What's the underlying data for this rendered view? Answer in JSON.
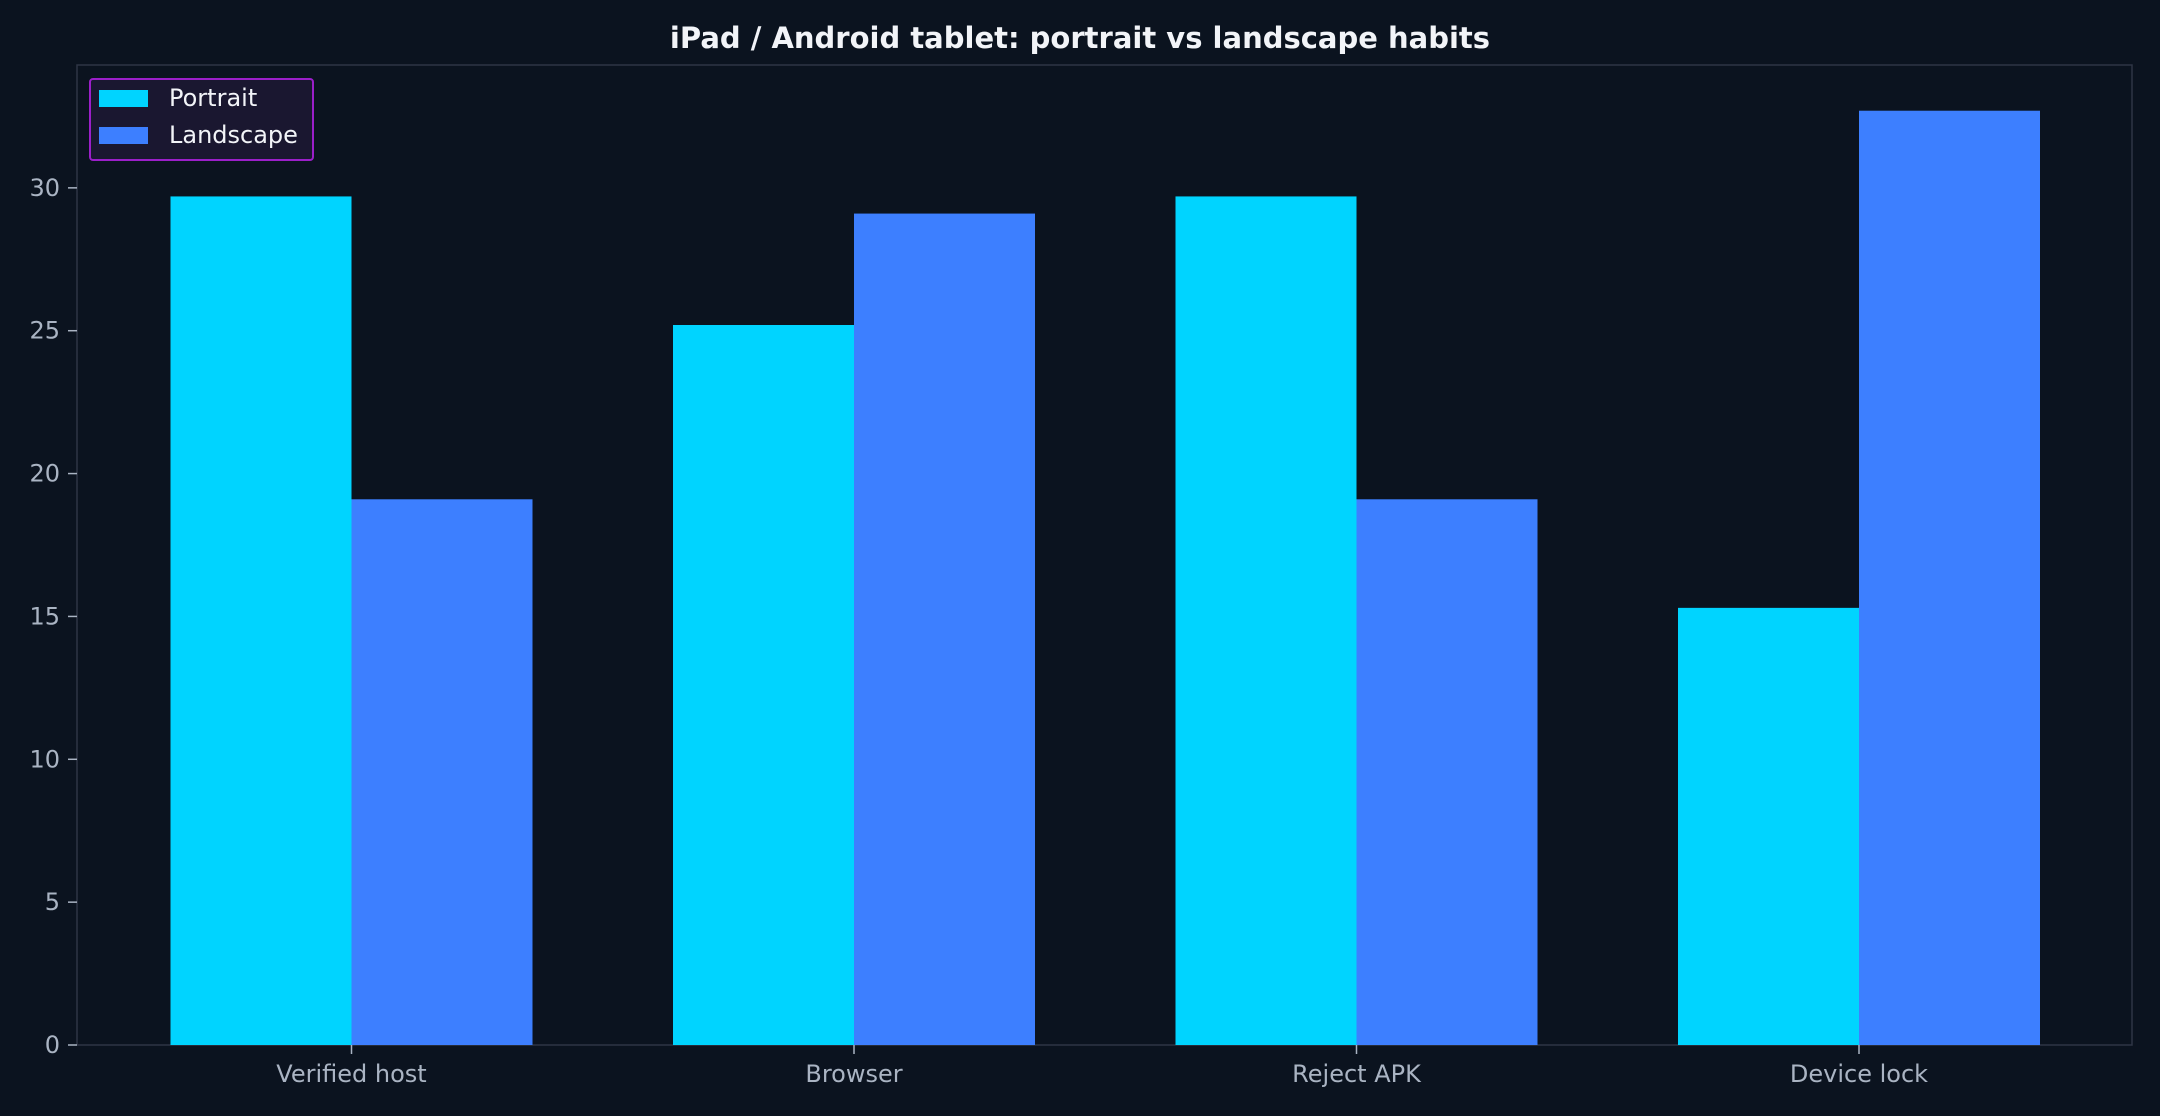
{
  "chart_data": {
    "type": "bar",
    "title": "iPad / Android tablet: portrait vs landscape habits",
    "xlabel": "",
    "ylabel": "",
    "categories": [
      "Verified host",
      "Browser",
      "Reject APK",
      "Device lock"
    ],
    "series": [
      {
        "name": "Portrait",
        "color": "#00d4ff",
        "values": [
          29.7,
          25.2,
          29.7,
          15.3
        ]
      },
      {
        "name": "Landscape",
        "color": "#3d7fff",
        "values": [
          19.1,
          29.1,
          19.1,
          32.7
        ]
      }
    ],
    "ylim": [
      0,
      34.3
    ],
    "yticks": [
      0,
      5,
      10,
      15,
      20,
      25,
      30
    ],
    "grid": false,
    "legend": {
      "placement": "top-left",
      "border_color": "#9b1fc9"
    },
    "colors": {
      "background": "#0b131f",
      "axis": "#3a4150",
      "text": "#aab4c3",
      "title": "#f2f4f8"
    }
  }
}
